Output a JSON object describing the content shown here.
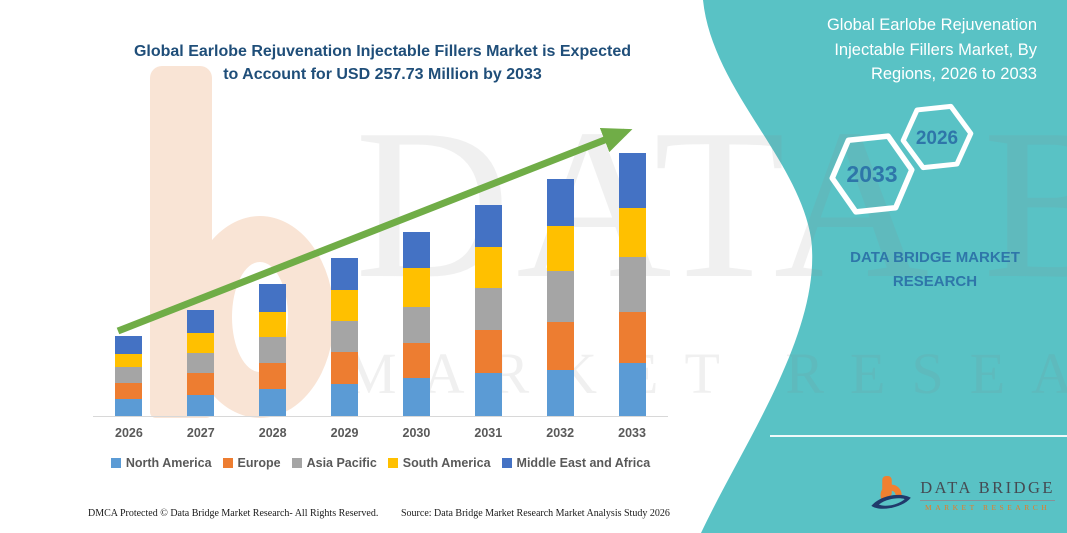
{
  "colors": {
    "teal_panel": "#59C2C5",
    "title_navy": "#1F4E79",
    "hex_text_blue": "#2E76A9",
    "arrow_green": "#70AD47",
    "axis_gray": "#D8D8D8",
    "label_gray": "#595959"
  },
  "page_title": {
    "line1": "Global Earlobe Rejuvenation Injectable Fillers Market is Expected",
    "line2": "to Account for USD 257.73 Million by 2033"
  },
  "right_panel": {
    "title_line1": "Global Earlobe Rejuvenation",
    "title_line2": "Injectable Fillers Market, By",
    "title_line3": "Regions, 2026 to 2033",
    "hexagon_large_label": "2033",
    "hexagon_small_label": "2026",
    "brand_line1": "DATA BRIDGE MARKET",
    "brand_line2": "RESEARCH"
  },
  "chart_data": {
    "type": "bar",
    "stacked": true,
    "unit": "USD Million",
    "categories": [
      "2026",
      "2027",
      "2028",
      "2029",
      "2030",
      "2031",
      "2032",
      "2033"
    ],
    "series": [
      {
        "name": "North America",
        "color": "#5B9BD5",
        "values": [
          16.3,
          21.0,
          26.2,
          31.4,
          36.9,
          42.0,
          45.0,
          52.4
        ]
      },
      {
        "name": "Europe",
        "color": "#ED7D31",
        "values": [
          16.4,
          21.2,
          26.3,
          31.5,
          34.3,
          41.8,
          47.5,
          50.0
        ]
      },
      {
        "name": "Asia Pacific",
        "color": "#A5A5A5",
        "values": [
          15.0,
          20.0,
          25.4,
          30.7,
          36.0,
          41.5,
          49.5,
          53.0
        ]
      },
      {
        "name": "South America",
        "color": "#FFC000",
        "values": [
          13.2,
          19.2,
          24.6,
          29.8,
          37.6,
          40.3,
          44.3,
          48.4
        ]
      },
      {
        "name": "Middle East and Africa",
        "color": "#4472C4",
        "values": [
          17.5,
          22.5,
          26.9,
          31.5,
          35.5,
          41.2,
          46.0,
          53.93
        ]
      }
    ],
    "totals": [
      78.4,
      103.9,
      129.4,
      154.9,
      180.3,
      206.8,
      232.3,
      257.73
    ],
    "ylim": [
      0,
      260
    ],
    "legend_position": "bottom",
    "trend_arrow": true,
    "title": "Global Earlobe Rejuvenation Injectable Fillers Market, By Regions, 2026 to 2033"
  },
  "watermark": {
    "big_text": "DATA B",
    "row_text": "MARKET RESEARC"
  },
  "footer": {
    "left": "DMCA Protected © Data Bridge Market Research- All Rights Reserved.",
    "right": "Source: Data Bridge Market Research Market Analysis Study 2026"
  },
  "logo": {
    "name": "DATA BRIDGE",
    "sub": "MARKET RESEARCH"
  }
}
